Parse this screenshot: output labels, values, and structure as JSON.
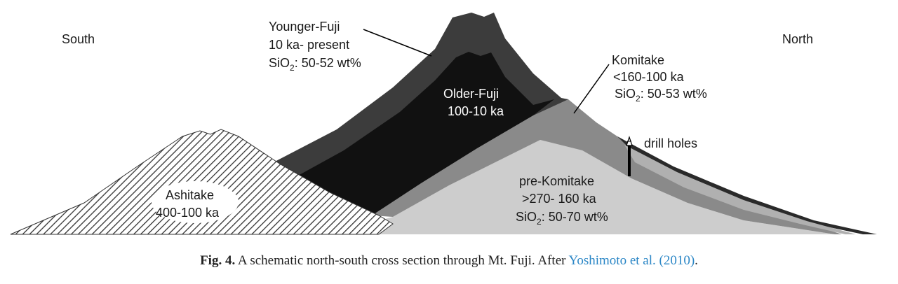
{
  "directions": {
    "left": "South",
    "right": "North"
  },
  "units": {
    "younger_fuji": {
      "name": "Younger-Fuji",
      "age": "10 ka- present",
      "sio2_prefix": "SiO",
      "sio2_sub": "2",
      "sio2_suffix": ": 50-52 wt%"
    },
    "older_fuji": {
      "name": "Older-Fuji",
      "age": "100-10 ka"
    },
    "komitake": {
      "name": "Komitake",
      "age": "<160-100 ka",
      "sio2_prefix": "SiO",
      "sio2_sub": "2",
      "sio2_suffix": ": 50-53 wt%"
    },
    "pre_komitake": {
      "name": "pre-Komitake",
      "age": ">270- 160 ka",
      "sio2_prefix": "SiO",
      "sio2_sub": "2",
      "sio2_suffix": ": 50-70 wt%"
    },
    "ashitake": {
      "name": "Ashitake",
      "age": "400-100 ka"
    }
  },
  "drill_holes_label": "drill holes",
  "caption": {
    "fig_label": "Fig. 4.",
    "text": " A schematic north-south cross section through Mt. Fuji. After ",
    "citation": "Yoshimoto et al. (2010)",
    "end": "."
  },
  "colors": {
    "younger_fuji": "#3c3c3c",
    "older_fuji": "#111111",
    "komitake": "#8a8a8a",
    "pre_komitake": "#cdcdcd",
    "ashitake_hatch": "#333333",
    "citation": "#2a86c6"
  }
}
